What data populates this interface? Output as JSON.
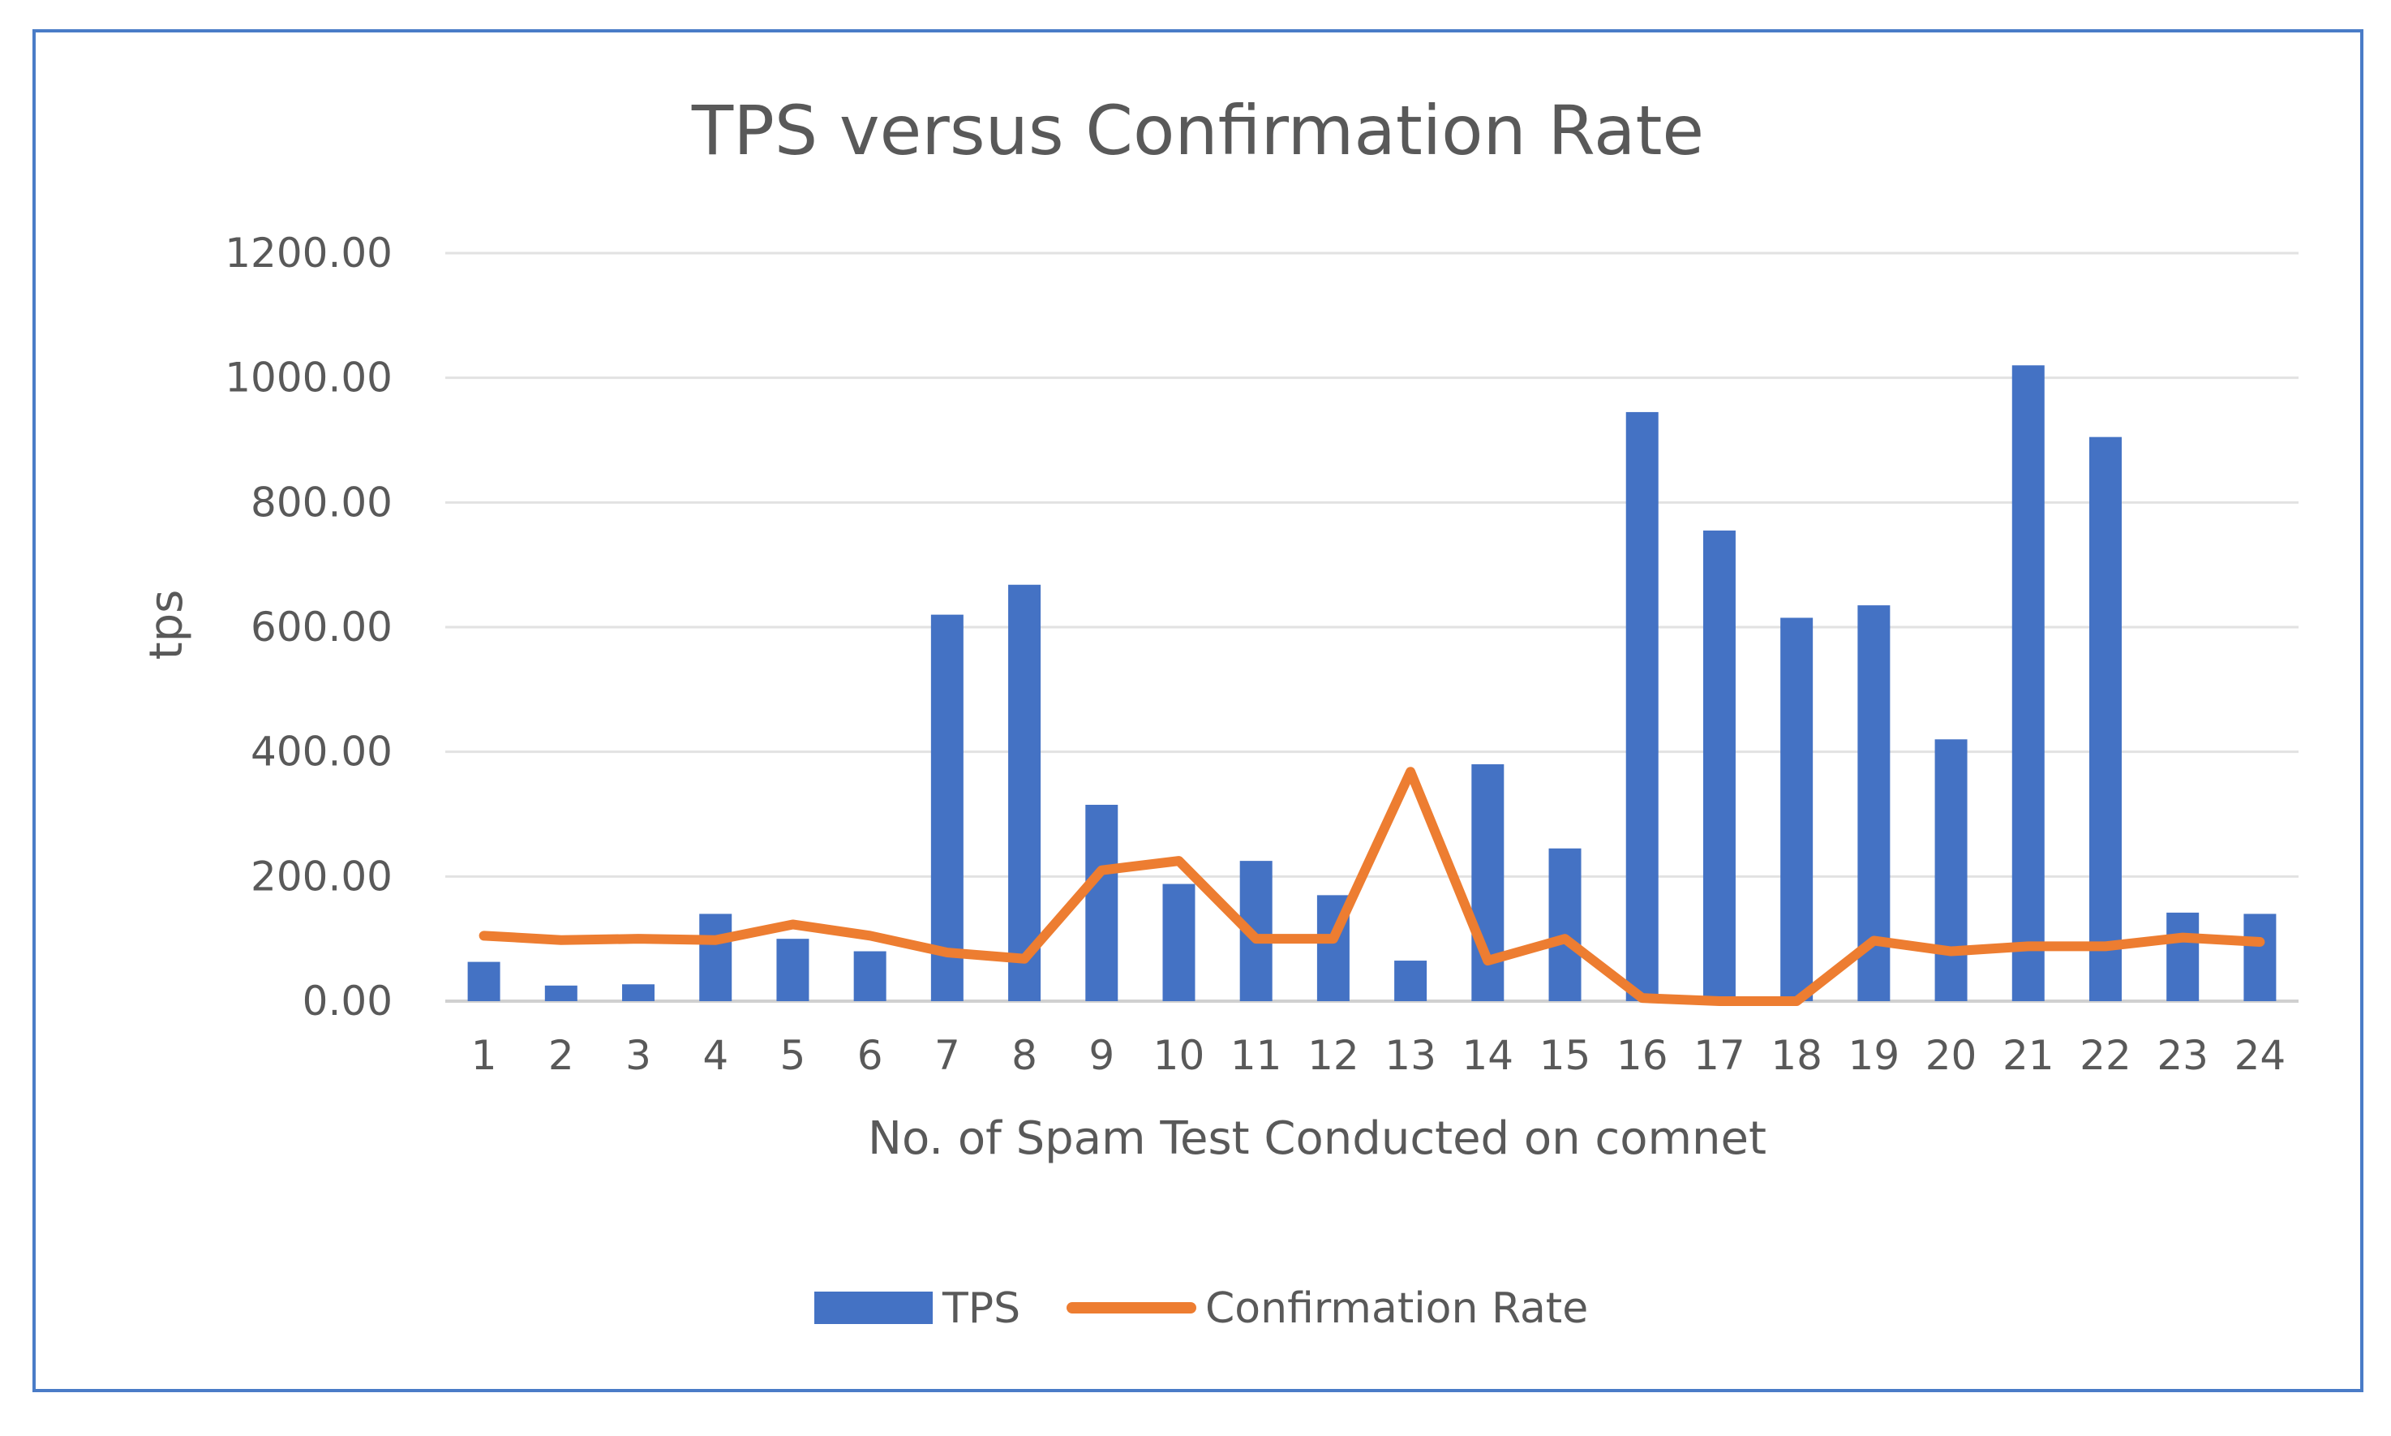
{
  "chart_data": {
    "type": "bar",
    "title": "TPS versus Confirmation Rate",
    "xlabel": "No. of Spam Test Conducted on comnet",
    "ylabel": "tps",
    "ylim": [
      0,
      1200
    ],
    "y_ticks": [
      "0.00",
      "200.00",
      "400.00",
      "600.00",
      "800.00",
      "1000.00",
      "1200.00"
    ],
    "grid": true,
    "legend_position": "bottom",
    "categories": [
      "1",
      "2",
      "3",
      "4",
      "5",
      "6",
      "7",
      "8",
      "9",
      "10",
      "11",
      "12",
      "13",
      "14",
      "15",
      "16",
      "17",
      "18",
      "19",
      "20",
      "21",
      "22",
      "23",
      "24"
    ],
    "series": [
      {
        "name": "TPS",
        "kind": "bar",
        "color": "#4472c4",
        "values": [
          63,
          25,
          27,
          140,
          100,
          80,
          620,
          668,
          315,
          188,
          225,
          170,
          65,
          380,
          245,
          945,
          755,
          615,
          635,
          420,
          1020,
          905,
          142,
          140
        ]
      },
      {
        "name": "Confirmation Rate",
        "kind": "line",
        "color": "#ed7d31",
        "values": [
          105,
          98,
          100,
          98,
          123,
          105,
          78,
          68,
          210,
          225,
          100,
          100,
          368,
          65,
          100,
          5,
          0,
          0,
          97,
          80,
          88,
          88,
          102,
          95
        ]
      }
    ]
  }
}
